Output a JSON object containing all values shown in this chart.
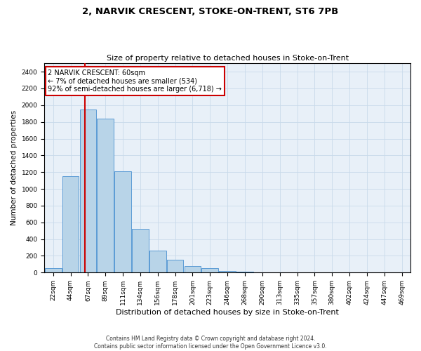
{
  "title1": "2, NARVIK CRESCENT, STOKE-ON-TRENT, ST6 7PB",
  "title2": "Size of property relative to detached houses in Stoke-on-Trent",
  "xlabel": "Distribution of detached houses by size in Stoke-on-Trent",
  "ylabel": "Number of detached properties",
  "footer1": "Contains HM Land Registry data © Crown copyright and database right 2024.",
  "footer2": "Contains public sector information licensed under the Open Government Licence v3.0.",
  "bin_labels": [
    "22sqm",
    "44sqm",
    "67sqm",
    "89sqm",
    "111sqm",
    "134sqm",
    "156sqm",
    "178sqm",
    "201sqm",
    "223sqm",
    "246sqm",
    "268sqm",
    "290sqm",
    "313sqm",
    "335sqm",
    "357sqm",
    "380sqm",
    "402sqm",
    "424sqm",
    "447sqm",
    "469sqm"
  ],
  "bar_values": [
    50,
    1150,
    1950,
    1840,
    1210,
    520,
    265,
    150,
    80,
    50,
    20,
    10,
    5,
    3,
    2,
    1,
    1,
    0,
    0,
    0,
    0
  ],
  "bar_color": "#b8d4e8",
  "bar_edge_color": "#5b9bd5",
  "ylim_max": 2500,
  "ytick_step": 200,
  "annotation_text": "2 NARVIK CRESCENT: 60sqm\n← 7% of detached houses are smaller (534)\n92% of semi-detached houses are larger (6,718) →",
  "annotation_box_facecolor": "#ffffff",
  "annotation_box_edgecolor": "#cc0000",
  "red_line_color": "#cc0000",
  "red_line_x": 1.82,
  "grid_color": "#c8daea",
  "bg_color": "#e8f0f8",
  "title1_fontsize": 9.5,
  "title2_fontsize": 8,
  "xlabel_fontsize": 8,
  "ylabel_fontsize": 7.5,
  "tick_fontsize": 6.5,
  "annot_fontsize": 7,
  "footer_fontsize": 5.5
}
